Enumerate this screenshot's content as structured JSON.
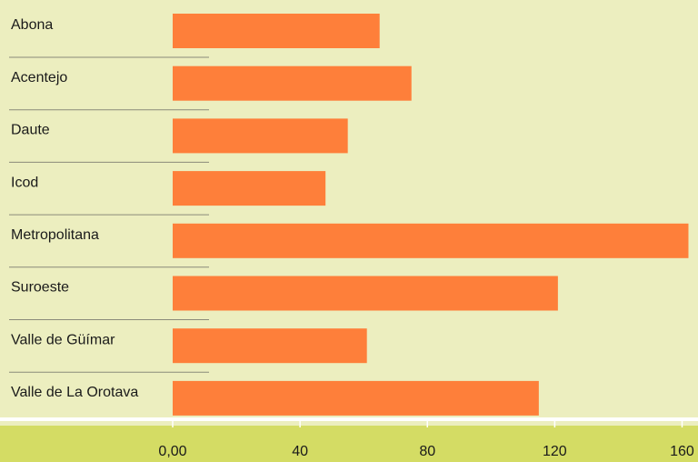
{
  "chart_data": {
    "type": "bar",
    "orientation": "horizontal",
    "categories": [
      "Abona",
      "Acentejo",
      "Daute",
      "Icod",
      "Metropolitana",
      "Suroeste",
      "Valle de Güímar",
      "Valle de La Orotava"
    ],
    "values": [
      65,
      75,
      55,
      48,
      162,
      121,
      61,
      115
    ],
    "color": "#fe7f3a",
    "xlim": [
      0,
      165
    ],
    "xticks": [
      {
        "value": 0,
        "label": "0,00"
      },
      40,
      80,
      120,
      160
    ]
  }
}
